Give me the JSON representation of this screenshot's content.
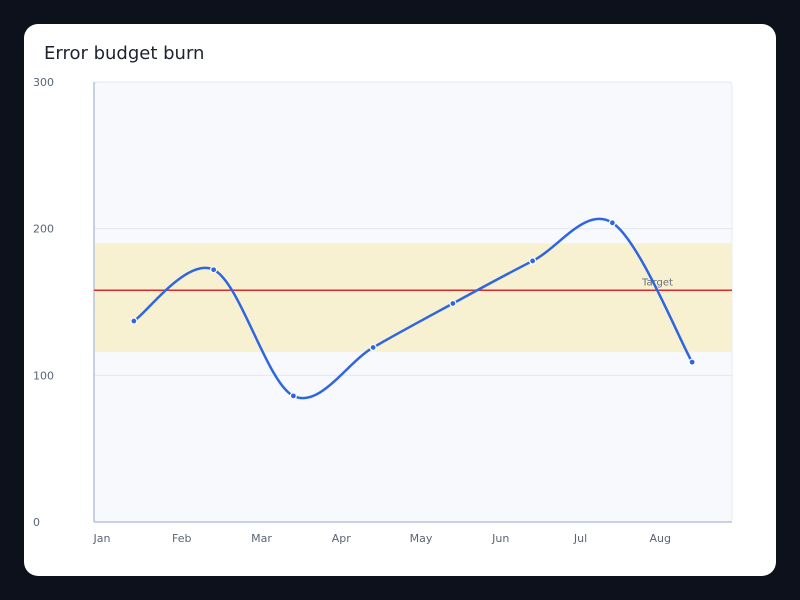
{
  "chart_data": {
    "type": "line",
    "title": "Error budget burn",
    "xlabel": "",
    "ylabel": "",
    "categories": [
      "Jan",
      "Feb",
      "Mar",
      "Apr",
      "May",
      "Jun",
      "Jul",
      "Aug"
    ],
    "series": [
      {
        "values": [
          137,
          172,
          86,
          119,
          149,
          178,
          204,
          109
        ]
      }
    ],
    "ylim": [
      0,
      300
    ],
    "yticks": [
      0,
      100,
      200,
      300
    ],
    "grid": true,
    "legend": "none",
    "reference_line": {
      "label": "Target",
      "value": 158
    },
    "target_band": [
      116,
      190
    ],
    "colors": {
      "line": "#2f66e0",
      "target_line": "#d92b2b",
      "band": "#f7f0cf",
      "plot_bg": "#f7f9fd",
      "grid": "#e3e8f1",
      "axis": "#b7c4dc",
      "tick_text": "#5b6477",
      "label_text": "#6a6f7a"
    }
  }
}
